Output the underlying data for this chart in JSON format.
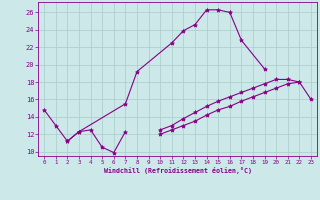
{
  "xlabel": "Windchill (Refroidissement éolien,°C)",
  "background_color": "#cce8e8",
  "line_color": "#880088",
  "grid_color": "#aacccc",
  "xlim": [
    -0.5,
    23.5
  ],
  "ylim": [
    9.5,
    27.2
  ],
  "xticks": [
    0,
    1,
    2,
    3,
    4,
    5,
    6,
    7,
    8,
    9,
    10,
    11,
    12,
    13,
    14,
    15,
    16,
    17,
    18,
    19,
    20,
    21,
    22,
    23
  ],
  "yticks": [
    10,
    12,
    14,
    16,
    18,
    20,
    22,
    24,
    26
  ],
  "curves": [
    {
      "x": [
        0,
        1,
        2,
        3,
        4,
        5,
        6,
        7
      ],
      "y": [
        14.8,
        13.0,
        11.2,
        12.3,
        12.5,
        10.5,
        9.9,
        12.3
      ]
    },
    {
      "x": [
        2,
        3,
        7,
        8,
        11,
        12,
        13,
        14,
        15,
        16,
        17,
        19
      ],
      "y": [
        11.2,
        12.3,
        15.5,
        19.2,
        22.5,
        23.9,
        24.6,
        26.3,
        26.3,
        26.0,
        22.8,
        19.5
      ]
    },
    {
      "x": [
        10,
        11,
        12,
        13,
        14,
        15,
        16,
        17,
        18,
        19,
        20,
        21,
        22
      ],
      "y": [
        12.5,
        13.0,
        13.8,
        14.5,
        15.2,
        15.8,
        16.3,
        16.8,
        17.3,
        17.8,
        18.3,
        18.3,
        18.0
      ]
    },
    {
      "x": [
        10,
        11,
        12,
        13,
        14,
        15,
        16,
        17,
        18,
        19,
        20,
        21,
        22,
        23
      ],
      "y": [
        12.0,
        12.5,
        13.0,
        13.5,
        14.2,
        14.8,
        15.2,
        15.8,
        16.3,
        16.8,
        17.3,
        17.8,
        18.0,
        16.0
      ]
    }
  ]
}
